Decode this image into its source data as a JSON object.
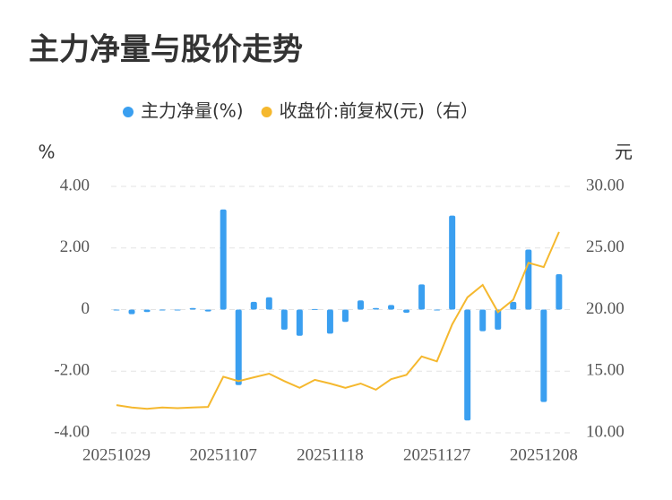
{
  "chart_data": {
    "type": "bar_line",
    "title": "主力净量与股价走势",
    "ylabel": "%",
    "y2label": "元",
    "categories": [
      "20251029",
      null,
      null,
      null,
      null,
      null,
      null,
      "20251107",
      null,
      null,
      null,
      null,
      null,
      null,
      "20251118",
      null,
      null,
      null,
      null,
      null,
      null,
      "20251127",
      null,
      null,
      null,
      null,
      null,
      null,
      "20251208",
      null
    ],
    "series": [
      {
        "name": "主力净量(%)",
        "color": "#3a9ff0",
        "type": "bar",
        "values": [
          -0.02,
          -0.15,
          -0.08,
          -0.03,
          -0.02,
          0.05,
          -0.06,
          3.25,
          -2.45,
          0.25,
          0.4,
          -0.65,
          -0.85,
          0.02,
          -0.78,
          -0.4,
          0.3,
          0.05,
          0.15,
          -0.1,
          0.82,
          -0.02,
          3.05,
          -3.6,
          -0.7,
          -0.65,
          0.25,
          1.95,
          -3.0,
          1.15
        ]
      },
      {
        "name": "收盘价:前复权(元)（右）",
        "color": "#f5b82e",
        "type": "line",
        "axis": "y2",
        "values": [
          12.25,
          12.05,
          11.95,
          12.05,
          12.0,
          12.05,
          12.1,
          14.55,
          14.2,
          14.5,
          14.8,
          14.2,
          13.65,
          14.3,
          14.0,
          13.65,
          14.0,
          13.5,
          14.35,
          14.7,
          16.2,
          15.8,
          18.8,
          21.0,
          22.0,
          19.8,
          20.8,
          23.8,
          23.45,
          26.3
        ]
      }
    ],
    "ylim": [
      -4,
      4
    ],
    "yticks": [
      {
        "value": -4,
        "label": "-4.00"
      },
      {
        "value": -2,
        "label": "-2.00"
      },
      0,
      {
        "value": 2,
        "label": "2.00"
      },
      {
        "value": 4,
        "label": "4.00"
      }
    ],
    "y2lim": [
      10,
      30
    ],
    "y2ticks": [
      {
        "value": 10,
        "label": "10.00"
      },
      {
        "value": 15,
        "label": "15.00"
      },
      {
        "value": 20,
        "label": "20.00"
      },
      {
        "value": 25,
        "label": "25.00"
      },
      {
        "value": 30,
        "label": "30.00"
      }
    ],
    "grid": true,
    "legend": "top"
  }
}
